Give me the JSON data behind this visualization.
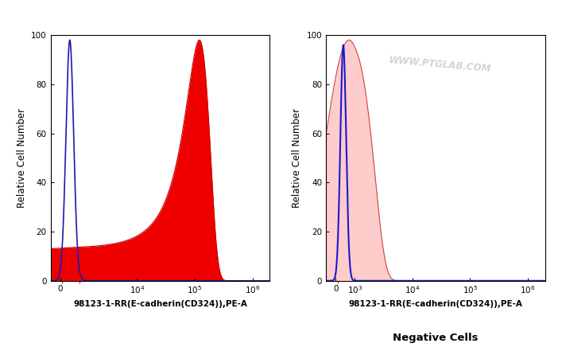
{
  "fig_width": 7.07,
  "fig_height": 4.41,
  "dpi": 100,
  "background_color": "#ffffff",
  "xlabel": "98123-1-RR(E-cadherin(CD324)),PE-A",
  "ylabel": "Relative Cell Number",
  "bottom_label": "Negative Cells",
  "ylim": [
    0,
    100
  ],
  "yticks": [
    0,
    20,
    40,
    60,
    80,
    100
  ],
  "plot1": {
    "blue_peak": 500,
    "blue_sigma": 200,
    "blue_height": 98,
    "red_peak": 120000,
    "red_sigma": 60000,
    "red_height": 98,
    "blue_color": "#1a1aaa",
    "red_fill_color": "#ee0000",
    "red_line_color": "#cc0000",
    "linthresh": 1000,
    "xlim_low": -500,
    "xlim_high": 2000000
  },
  "plot2": {
    "blue_peak": 400,
    "blue_sigma": 150,
    "blue_height": 96,
    "red_peak": 700,
    "red_sigma": 1200,
    "red_height": 98,
    "blue_color": "#1a1acc",
    "red_fill_color": "#ffcccc",
    "red_line_color": "#cc4444",
    "linthresh": 1000,
    "xlim_low": -500,
    "xlim_high": 2000000
  },
  "watermark": "WWW.PTGLAB.COM"
}
